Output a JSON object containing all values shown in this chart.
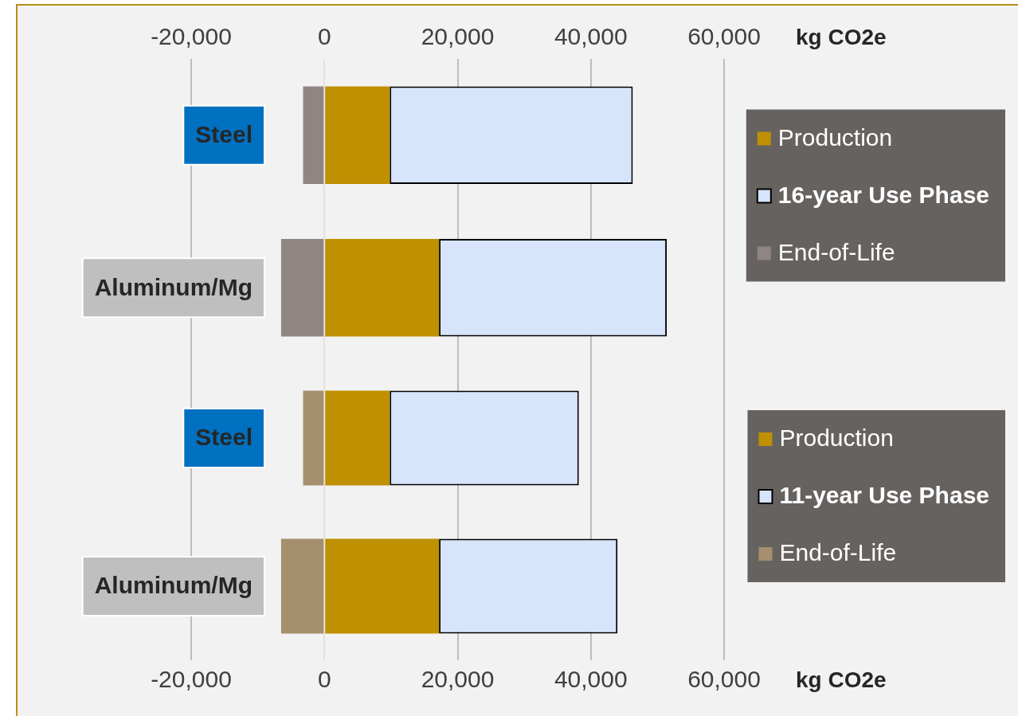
{
  "chart_data": [
    {
      "type": "bar",
      "orientation": "horizontal",
      "stacked": true,
      "categories": [
        "Steel",
        "Aluminum/Mg"
      ],
      "series": [
        {
          "name": "Production",
          "color": "#bf9000",
          "values": [
            9800,
            17200
          ]
        },
        {
          "name": "16-year Use Phase",
          "color": "#d6e4fc",
          "values": [
            36500,
            34200
          ]
        },
        {
          "name": "End-of-Life",
          "color": "#8f8583",
          "values": [
            -3200,
            -6500
          ]
        }
      ],
      "xlim": [
        -20000,
        60000
      ],
      "xticks": [
        {
          "value": -20000,
          "label": "-20,000"
        },
        0,
        {
          "value": 20000,
          "label": "20,000"
        },
        {
          "value": 40000,
          "label": "40,000"
        },
        {
          "value": 60000,
          "label": "60,000"
        }
      ],
      "xlabel": "kg CO2e",
      "grid": "x",
      "legend": "right"
    },
    {
      "type": "bar",
      "orientation": "horizontal",
      "stacked": true,
      "categories": [
        "Steel",
        "Aluminum/Mg"
      ],
      "series": [
        {
          "name": "Production",
          "color": "#bf9000",
          "values": [
            9800,
            17200
          ]
        },
        {
          "name": "11-year Use Phase",
          "color": "#d6e4fc",
          "values": [
            28400,
            26800
          ]
        },
        {
          "name": "End-of-Life",
          "color": "#a58f6e",
          "values": [
            -3200,
            -6500
          ]
        }
      ],
      "xlim": [
        -20000,
        60000
      ],
      "xticks": [
        {
          "value": -20000,
          "label": "-20,000"
        },
        0,
        {
          "value": 20000,
          "label": "20,000"
        },
        {
          "value": 40000,
          "label": "40,000"
        },
        {
          "value": 60000,
          "label": "60,000"
        }
      ],
      "xlabel": "kg CO2e",
      "grid": "x",
      "legend": "right"
    }
  ]
}
